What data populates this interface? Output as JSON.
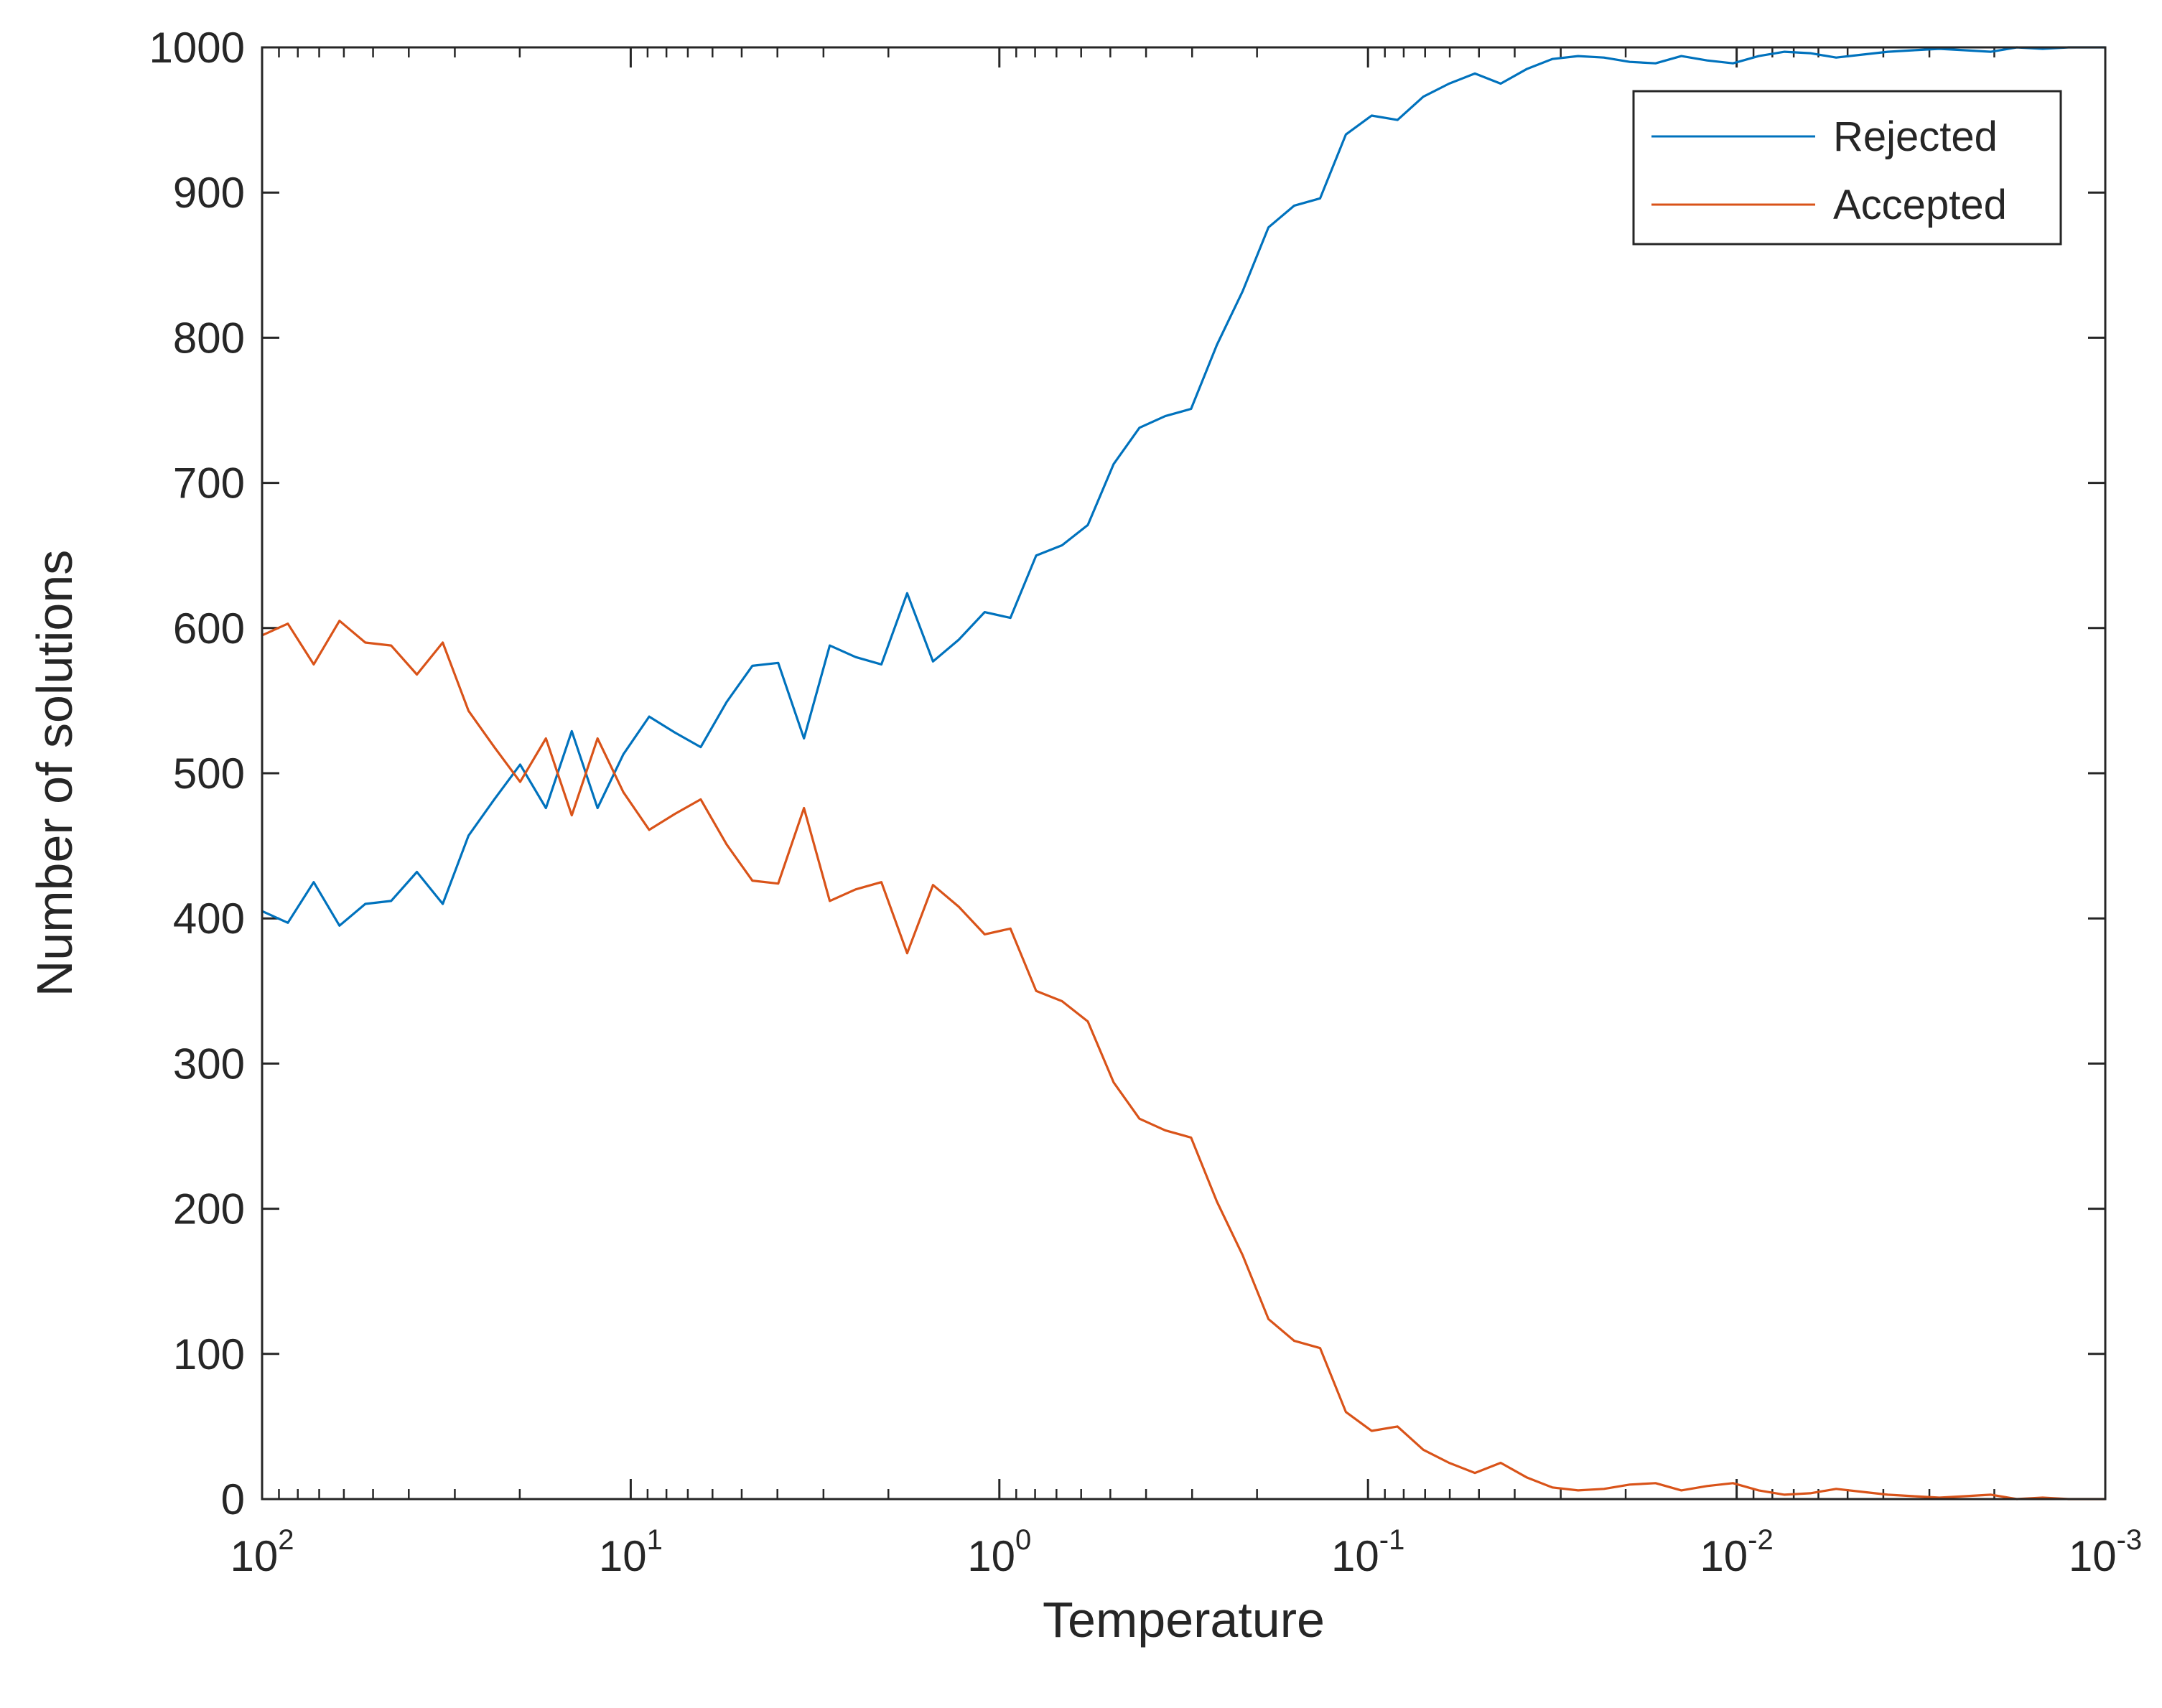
{
  "chart_data": {
    "type": "line",
    "title": "",
    "xlabel": "Temperature",
    "ylabel": "Number of solutions",
    "x_scale": "log",
    "x_reversed": true,
    "xlim": [
      100,
      0.001
    ],
    "ylim": [
      0,
      1000
    ],
    "grid": false,
    "legend_position": "top-right",
    "x_ticks": [
      {
        "base": "10",
        "exp": "2",
        "value": 100
      },
      {
        "base": "10",
        "exp": "1",
        "value": 10
      },
      {
        "base": "10",
        "exp": "0",
        "value": 1
      },
      {
        "base": "10",
        "exp": "-1",
        "value": 0.1
      },
      {
        "base": "10",
        "exp": "-2",
        "value": 0.01
      },
      {
        "base": "10",
        "exp": "-3",
        "value": 0.001
      }
    ],
    "y_ticks": [
      "0",
      "100",
      "200",
      "300",
      "400",
      "500",
      "600",
      "700",
      "800",
      "900",
      "1000"
    ],
    "x_log10": [
      2.0,
      1.93,
      1.86,
      1.79,
      1.72,
      1.65,
      1.58,
      1.51,
      1.44,
      1.37,
      1.3,
      1.23,
      1.16,
      1.09,
      1.02,
      0.95,
      0.88,
      0.81,
      0.74,
      0.67,
      0.6,
      0.53,
      0.46,
      0.39,
      0.32,
      0.25,
      0.18,
      0.11,
      0.04,
      -0.03,
      -0.1,
      -0.17,
      -0.24,
      -0.31,
      -0.38,
      -0.45,
      -0.52,
      -0.59,
      -0.66,
      -0.73,
      -0.8,
      -0.87,
      -0.94,
      -1.01,
      -1.08,
      -1.15,
      -1.22,
      -1.29,
      -1.36,
      -1.43,
      -1.5,
      -1.57,
      -1.64,
      -1.71,
      -1.78,
      -1.85,
      -1.92,
      -1.99,
      -2.06,
      -2.13,
      -2.2,
      -2.27,
      -2.34,
      -2.41,
      -2.48,
      -2.55,
      -2.62,
      -2.69,
      -2.76,
      -2.83,
      -2.9,
      -2.97,
      -3.0
    ],
    "series": [
      {
        "name": "Rejected",
        "color": "#0072BD",
        "values": [
          405,
          397,
          425,
          395,
          410,
          412,
          432,
          410,
          457,
          482,
          506,
          476,
          529,
          476,
          513,
          539,
          528,
          518,
          549,
          574,
          576,
          524,
          588,
          580,
          575,
          624,
          577,
          592,
          611,
          607,
          650,
          657,
          671,
          713,
          738,
          746,
          751,
          795,
          832,
          876,
          891,
          896,
          940,
          953,
          950,
          966,
          975,
          982,
          975,
          985,
          992,
          994,
          993,
          990,
          989,
          994,
          991,
          989,
          994,
          997,
          996,
          993,
          995,
          997,
          998,
          999,
          998,
          997,
          1000,
          999,
          1000,
          1000,
          1000
        ]
      },
      {
        "name": "Accepted",
        "color": "#D95319",
        "values": [
          595,
          603,
          575,
          605,
          590,
          588,
          568,
          590,
          543,
          518,
          494,
          524,
          471,
          524,
          487,
          461,
          472,
          482,
          451,
          426,
          424,
          476,
          412,
          420,
          425,
          376,
          423,
          408,
          389,
          393,
          350,
          343,
          329,
          287,
          262,
          254,
          249,
          205,
          168,
          124,
          109,
          104,
          60,
          47,
          50,
          34,
          25,
          18,
          25,
          15,
          8,
          6,
          7,
          10,
          11,
          6,
          9,
          11,
          6,
          3,
          4,
          7,
          5,
          3,
          2,
          1,
          2,
          3,
          0,
          1,
          0,
          0,
          0
        ]
      }
    ]
  }
}
